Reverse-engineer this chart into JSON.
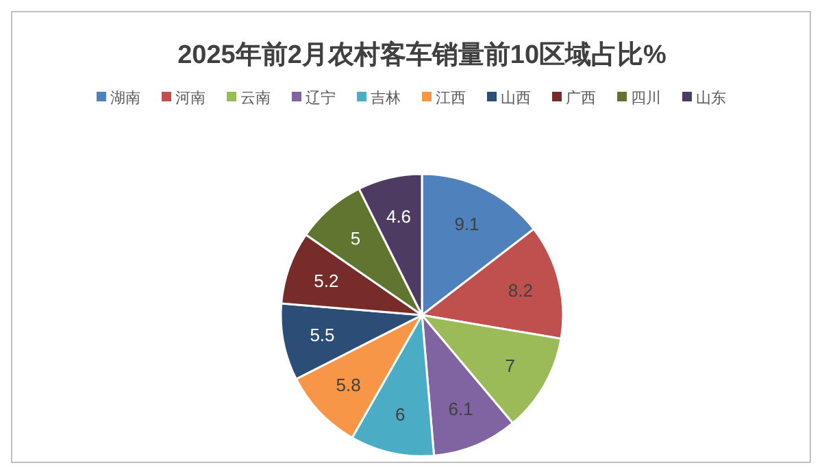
{
  "chart_data": {
    "type": "pie",
    "title": "2025年前2月农村客车销量前10区域占比%",
    "categories": [
      "湖南",
      "河南",
      "云南",
      "辽宁",
      "吉林",
      "江西",
      "山西",
      "广西",
      "四川",
      "山东"
    ],
    "values": [
      9.1,
      8.2,
      7,
      6.1,
      6,
      5.8,
      5.5,
      5.2,
      5,
      4.6
    ],
    "colors": [
      "#4f81bd",
      "#c0504d",
      "#9bbb59",
      "#8064a2",
      "#4bacc6",
      "#f79646",
      "#2c4d75",
      "#772c2a",
      "#5f7530",
      "#4d3b62"
    ],
    "data_labels": true,
    "legend": "top"
  }
}
